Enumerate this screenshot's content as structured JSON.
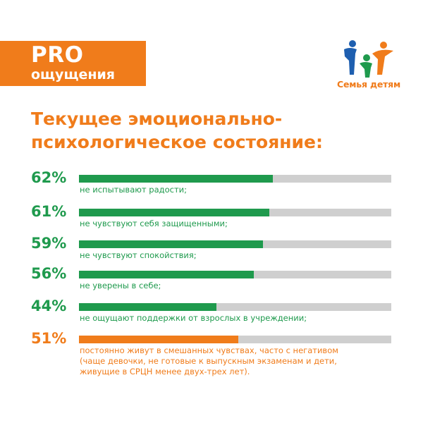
{
  "banner": {
    "line1": "PRO",
    "line2": "ощущения"
  },
  "logo": {
    "text": "Семья детям",
    "colors": [
      "#1e5fb0",
      "#f07c1b",
      "#1f9a4d"
    ]
  },
  "heading": {
    "line1": "Текущее эмоционально-",
    "line2": "психологическое состояние:"
  },
  "colors": {
    "green": "#1f9a4d",
    "orange": "#f07c1b",
    "track": "#cfcfcf"
  },
  "chart_data": {
    "type": "bar",
    "orientation": "horizontal",
    "xlim": [
      0,
      100
    ],
    "grid": false,
    "items": [
      {
        "pct_label": "62%",
        "value": 62,
        "label": "не испытывают радости;",
        "color": "#1f9a4d"
      },
      {
        "pct_label": "61%",
        "value": 61,
        "label": "не чувствуют себя защищенными;",
        "color": "#1f9a4d"
      },
      {
        "pct_label": "59%",
        "value": 59,
        "label": "не чувствуют спокойствия;",
        "color": "#1f9a4d"
      },
      {
        "pct_label": "56%",
        "value": 56,
        "label": "не уверены в себе;",
        "color": "#1f9a4d"
      },
      {
        "pct_label": "44%",
        "value": 44,
        "label": "не ощущают поддержки от взрослых в учреждении;",
        "color": "#1f9a4d"
      },
      {
        "pct_label": "51%",
        "value": 51,
        "label": "постоянно живут в смешанных чувствах, часто с негативом",
        "color": "#f07c1b",
        "note_lines": [
          "(чаще девочки, не готовые к выпускным экзаменам и дети,",
          "живущие в СРЦН менее двух-трех лет)."
        ]
      }
    ]
  }
}
